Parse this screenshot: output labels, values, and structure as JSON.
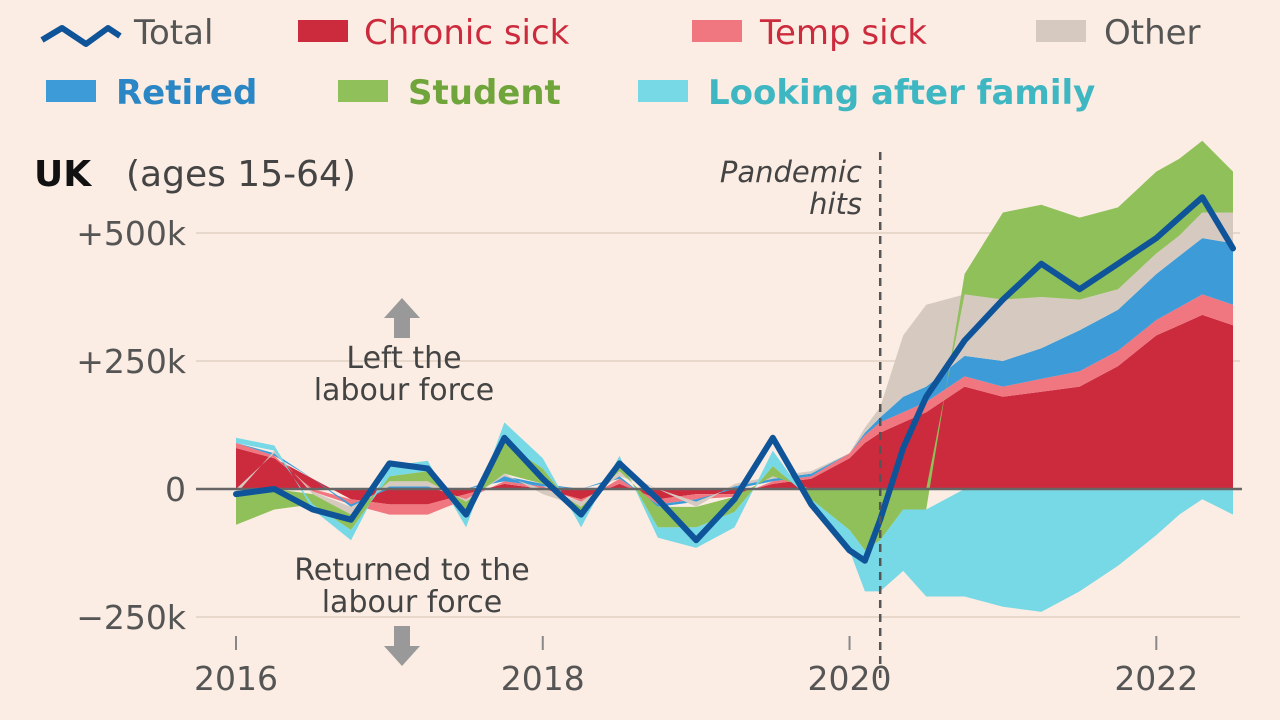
{
  "chart_data": {
    "type": "area",
    "title": "UK",
    "subtitle": "(ages 15-64)",
    "xlabel": "",
    "ylabel": "",
    "xlim": [
      2016.0,
      2022.5
    ],
    "ylim": [
      -300000,
      650000
    ],
    "x_ticks": [
      2016,
      2018,
      2020,
      2022
    ],
    "x_tick_labels": [
      "2016",
      "2018",
      "2020",
      "2022"
    ],
    "y_ticks": [
      500000,
      250000,
      0,
      -250000
    ],
    "y_tick_labels": [
      "+500k",
      "+250k",
      "0",
      "−250k"
    ],
    "grid": true,
    "legend": {
      "placement": "top",
      "items": [
        {
          "key": "total",
          "label": "Total",
          "color": "#0f5499",
          "marker": "line"
        },
        {
          "key": "chronic",
          "label": "Chronic sick",
          "color": "#cc2b3e",
          "marker": "box"
        },
        {
          "key": "temp",
          "label": "Temp sick",
          "color": "#f07780",
          "marker": "box"
        },
        {
          "key": "other",
          "label": "Other",
          "color": "#d6cac0",
          "marker": "box"
        },
        {
          "key": "retired",
          "label": "Retired",
          "color": "#3d9bd8",
          "marker": "box"
        },
        {
          "key": "student",
          "label": "Student",
          "color": "#8fc05a",
          "marker": "box"
        },
        {
          "key": "family",
          "label": "Looking after family",
          "color": "#77d8e6",
          "marker": "box"
        }
      ]
    },
    "annotations": {
      "pandemic_line_1": "Pandemic",
      "pandemic_line_2": "hits",
      "pandemic_x": 2020.2,
      "left_line_1": "Left the",
      "left_line_2": "labour force",
      "returned_line_1": "Returned to the",
      "returned_line_2": "labour force"
    },
    "x": [
      2016.0,
      2016.25,
      2016.5,
      2016.75,
      2017.0,
      2017.25,
      2017.5,
      2017.75,
      2018.0,
      2018.25,
      2018.5,
      2018.75,
      2019.0,
      2019.25,
      2019.5,
      2019.75,
      2020.0,
      2020.1,
      2020.2,
      2020.35,
      2020.5,
      2020.75,
      2021.0,
      2021.25,
      2021.5,
      2021.75,
      2022.0,
      2022.15,
      2022.3,
      2022.5
    ],
    "series": [
      {
        "key": "total",
        "name": "Total",
        "type": "line",
        "values": [
          -10000,
          0,
          -40000,
          -60000,
          50000,
          40000,
          -50000,
          100000,
          20000,
          -50000,
          50000,
          -20000,
          -100000,
          -20000,
          100000,
          -30000,
          -120000,
          -140000,
          -60000,
          80000,
          180000,
          290000,
          370000,
          440000,
          390000,
          440000,
          490000,
          530000,
          570000,
          470000
        ]
      },
      {
        "key": "chronic",
        "name": "Chronic sick",
        "values": [
          80000,
          60000,
          20000,
          -20000,
          -30000,
          -30000,
          -10000,
          10000,
          0,
          -20000,
          10000,
          -20000,
          -10000,
          -10000,
          10000,
          20000,
          60000,
          90000,
          110000,
          130000,
          150000,
          200000,
          180000,
          190000,
          200000,
          240000,
          300000,
          320000,
          340000,
          320000
        ]
      },
      {
        "key": "temp",
        "name": "Temp sick",
        "values": [
          10000,
          5000,
          -5000,
          -10000,
          -20000,
          -20000,
          -10000,
          5000,
          5000,
          -5000,
          10000,
          -10000,
          -10000,
          -5000,
          5000,
          5000,
          10000,
          15000,
          20000,
          20000,
          20000,
          20000,
          20000,
          25000,
          30000,
          30000,
          30000,
          35000,
          40000,
          40000
        ]
      },
      {
        "key": "other",
        "name": "Other",
        "values": [
          -10000,
          5000,
          -5000,
          -15000,
          10000,
          10000,
          -5000,
          5000,
          -10000,
          -10000,
          10000,
          0,
          -10000,
          5000,
          5000,
          5000,
          0,
          10000,
          20000,
          120000,
          160000,
          120000,
          120000,
          100000,
          60000,
          40000,
          40000,
          40000,
          50000,
          60000
        ]
      },
      {
        "key": "retired",
        "name": "Retired",
        "values": [
          0,
          5000,
          0,
          -5000,
          5000,
          5000,
          0,
          10000,
          5000,
          0,
          5000,
          -5000,
          -5000,
          5000,
          5000,
          5000,
          0,
          5000,
          10000,
          30000,
          30000,
          40000,
          50000,
          60000,
          80000,
          80000,
          90000,
          100000,
          110000,
          120000
        ]
      },
      {
        "key": "student",
        "name": "Student",
        "values": [
          -60000,
          -40000,
          -20000,
          -30000,
          10000,
          20000,
          -20000,
          60000,
          30000,
          -20000,
          20000,
          -40000,
          -40000,
          -30000,
          20000,
          -20000,
          -80000,
          -120000,
          -100000,
          -40000,
          -40000,
          40000,
          170000,
          180000,
          160000,
          160000,
          160000,
          150000,
          140000,
          80000
        ]
      },
      {
        "key": "family",
        "name": "Looking after family",
        "values": [
          10000,
          10000,
          -10000,
          -20000,
          20000,
          20000,
          -30000,
          40000,
          20000,
          -20000,
          10000,
          -20000,
          -40000,
          -30000,
          30000,
          -10000,
          -40000,
          -80000,
          -100000,
          -120000,
          -170000,
          -210000,
          -230000,
          -240000,
          -200000,
          -150000,
          -90000,
          -50000,
          -20000,
          -50000
        ]
      }
    ]
  }
}
